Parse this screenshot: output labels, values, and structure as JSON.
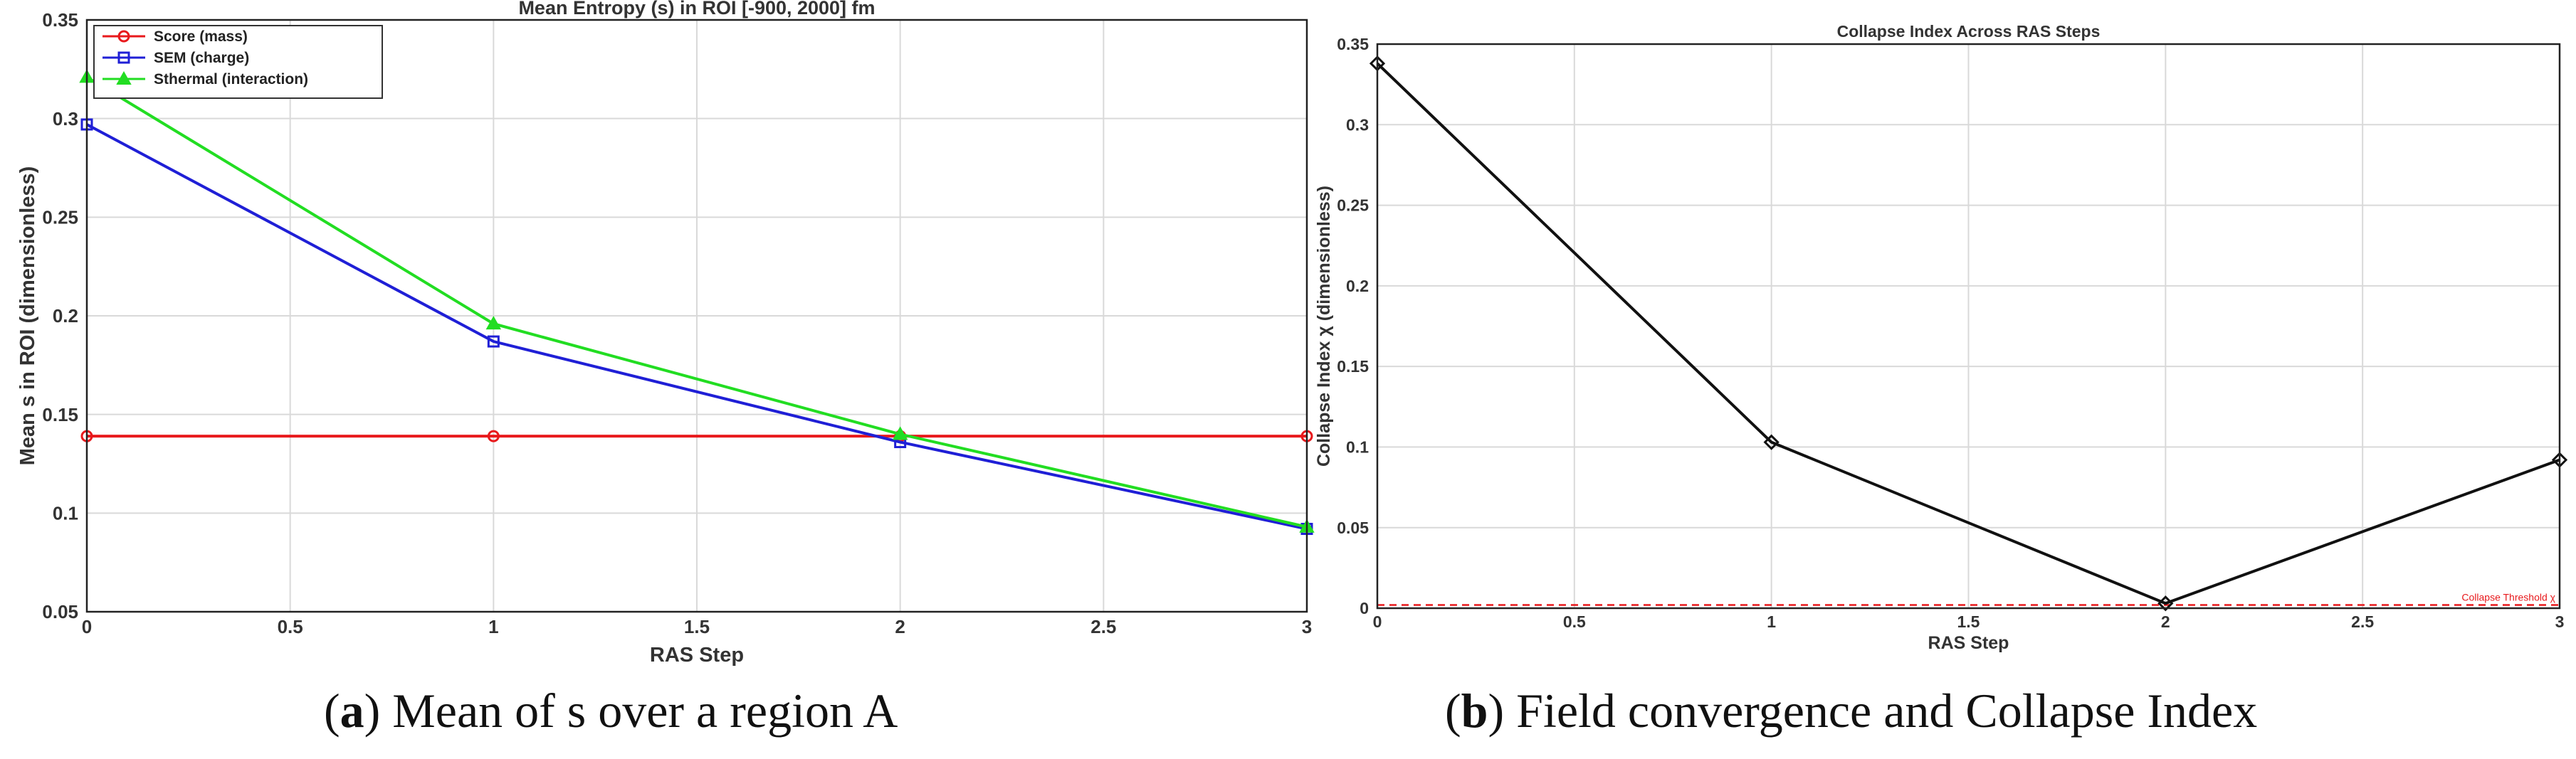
{
  "chart_data": [
    {
      "type": "line",
      "title": "Mean Entropy (s) in ROI [-900, 2000] fm",
      "xlabel": "RAS Step",
      "ylabel": "Mean s in ROI (dimensionless)",
      "xlim": [
        0,
        3
      ],
      "ylim": [
        0.05,
        0.35
      ],
      "xticks": [
        "0",
        "0.5",
        "1",
        "1.5",
        "2",
        "2.5",
        "3"
      ],
      "yticks": [
        "0.05",
        "0.1",
        "0.15",
        "0.2",
        "0.25",
        "0.3",
        "0.35"
      ],
      "grid": true,
      "legend_position": "top-left",
      "x": [
        0,
        1,
        2,
        3
      ],
      "series": [
        {
          "name": "Score (mass)",
          "color": "#e8191c",
          "marker": "circle",
          "values": [
            0.139,
            0.139,
            0.139,
            0.139
          ]
        },
        {
          "name": "SEM (charge)",
          "color": "#1f1fd6",
          "marker": "square",
          "values": [
            0.297,
            0.187,
            0.136,
            0.092
          ]
        },
        {
          "name": "Sthermal (interaction)",
          "color": "#22dd22",
          "marker": "triangle",
          "values": [
            0.321,
            0.196,
            0.14,
            0.093
          ]
        }
      ]
    },
    {
      "type": "line",
      "title": "Collapse Index Across RAS Steps",
      "xlabel": "RAS Step",
      "ylabel": "Collapse Index  χ (dimensionless)",
      "xlim": [
        0,
        3
      ],
      "ylim": [
        0,
        0.35
      ],
      "xticks": [
        "0",
        "0.5",
        "1",
        "1.5",
        "2",
        "2.5",
        "3"
      ],
      "yticks": [
        "0",
        "0.05",
        "0.1",
        "0.15",
        "0.2",
        "0.25",
        "0.3",
        "0.35"
      ],
      "grid": true,
      "x": [
        0,
        1,
        2,
        3
      ],
      "series": [
        {
          "color": "#111111",
          "marker": "diamond",
          "values": [
            0.338,
            0.103,
            0.003,
            0.092
          ]
        }
      ],
      "threshold": {
        "value": 0.002,
        "label": "Collapse Threshold χ",
        "color": "#e8191c"
      }
    }
  ],
  "captions": {
    "a": {
      "letter": "a",
      "text": ") Mean of s over a region A"
    },
    "b": {
      "letter": "b",
      "text": ") Field convergence and Collapse Index"
    }
  }
}
